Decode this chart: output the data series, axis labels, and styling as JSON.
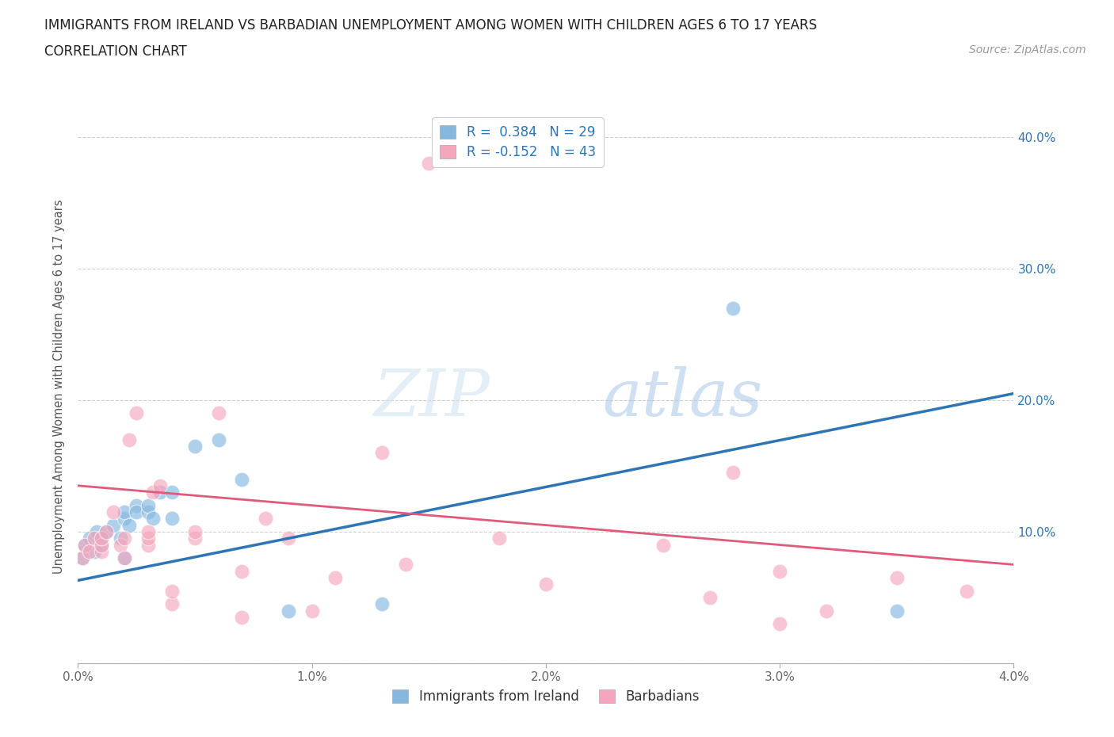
{
  "title": "IMMIGRANTS FROM IRELAND VS BARBADIAN UNEMPLOYMENT AMONG WOMEN WITH CHILDREN AGES 6 TO 17 YEARS",
  "subtitle": "CORRELATION CHART",
  "source": "Source: ZipAtlas.com",
  "ylabel": "Unemployment Among Women with Children Ages 6 to 17 years",
  "x_min": 0.0,
  "x_max": 0.04,
  "y_min": 0.0,
  "y_max": 0.42,
  "x_ticks": [
    0.0,
    0.01,
    0.02,
    0.03,
    0.04
  ],
  "x_tick_labels": [
    "0.0%",
    "1.0%",
    "2.0%",
    "3.0%",
    "4.0%"
  ],
  "y_ticks": [
    0.0,
    0.1,
    0.2,
    0.3,
    0.4
  ],
  "y_tick_labels_right": [
    "",
    "10.0%",
    "20.0%",
    "30.0%",
    "40.0%"
  ],
  "grid_color": "#d0d0d0",
  "background_color": "#ffffff",
  "blue_color": "#85b8e0",
  "pink_color": "#f4a6bc",
  "blue_line_color": "#2e75b6",
  "pink_line_color": "#e05a7a",
  "legend_r1": "R =  0.384   N = 29",
  "legend_r2": "R = -0.152   N = 43",
  "legend_label1": "Immigrants from Ireland",
  "legend_label2": "Barbadians",
  "blue_scatter_x": [
    0.0002,
    0.0003,
    0.0005,
    0.0007,
    0.0008,
    0.001,
    0.001,
    0.0012,
    0.0015,
    0.0018,
    0.002,
    0.002,
    0.002,
    0.0022,
    0.0025,
    0.0025,
    0.003,
    0.003,
    0.0032,
    0.0035,
    0.004,
    0.004,
    0.005,
    0.006,
    0.007,
    0.009,
    0.013,
    0.028,
    0.035
  ],
  "blue_scatter_y": [
    0.08,
    0.09,
    0.095,
    0.085,
    0.1,
    0.09,
    0.095,
    0.1,
    0.105,
    0.095,
    0.08,
    0.11,
    0.115,
    0.105,
    0.12,
    0.115,
    0.115,
    0.12,
    0.11,
    0.13,
    0.11,
    0.13,
    0.165,
    0.17,
    0.14,
    0.04,
    0.045,
    0.27,
    0.04
  ],
  "pink_scatter_x": [
    0.0002,
    0.0003,
    0.0005,
    0.0007,
    0.001,
    0.001,
    0.001,
    0.0012,
    0.0015,
    0.0018,
    0.002,
    0.002,
    0.0022,
    0.0025,
    0.003,
    0.003,
    0.003,
    0.0032,
    0.0035,
    0.004,
    0.004,
    0.005,
    0.005,
    0.006,
    0.007,
    0.007,
    0.008,
    0.009,
    0.01,
    0.011,
    0.013,
    0.014,
    0.015,
    0.018,
    0.02,
    0.025,
    0.027,
    0.028,
    0.03,
    0.03,
    0.032,
    0.035,
    0.038
  ],
  "pink_scatter_y": [
    0.08,
    0.09,
    0.085,
    0.095,
    0.085,
    0.09,
    0.095,
    0.1,
    0.115,
    0.09,
    0.08,
    0.095,
    0.17,
    0.19,
    0.09,
    0.095,
    0.1,
    0.13,
    0.135,
    0.045,
    0.055,
    0.095,
    0.1,
    0.19,
    0.035,
    0.07,
    0.11,
    0.095,
    0.04,
    0.065,
    0.16,
    0.075,
    0.38,
    0.095,
    0.06,
    0.09,
    0.05,
    0.145,
    0.03,
    0.07,
    0.04,
    0.065,
    0.055
  ],
  "blue_line_x": [
    0.0,
    0.04
  ],
  "blue_line_y": [
    0.063,
    0.205
  ],
  "pink_line_x": [
    0.0,
    0.04
  ],
  "pink_line_y": [
    0.135,
    0.075
  ]
}
